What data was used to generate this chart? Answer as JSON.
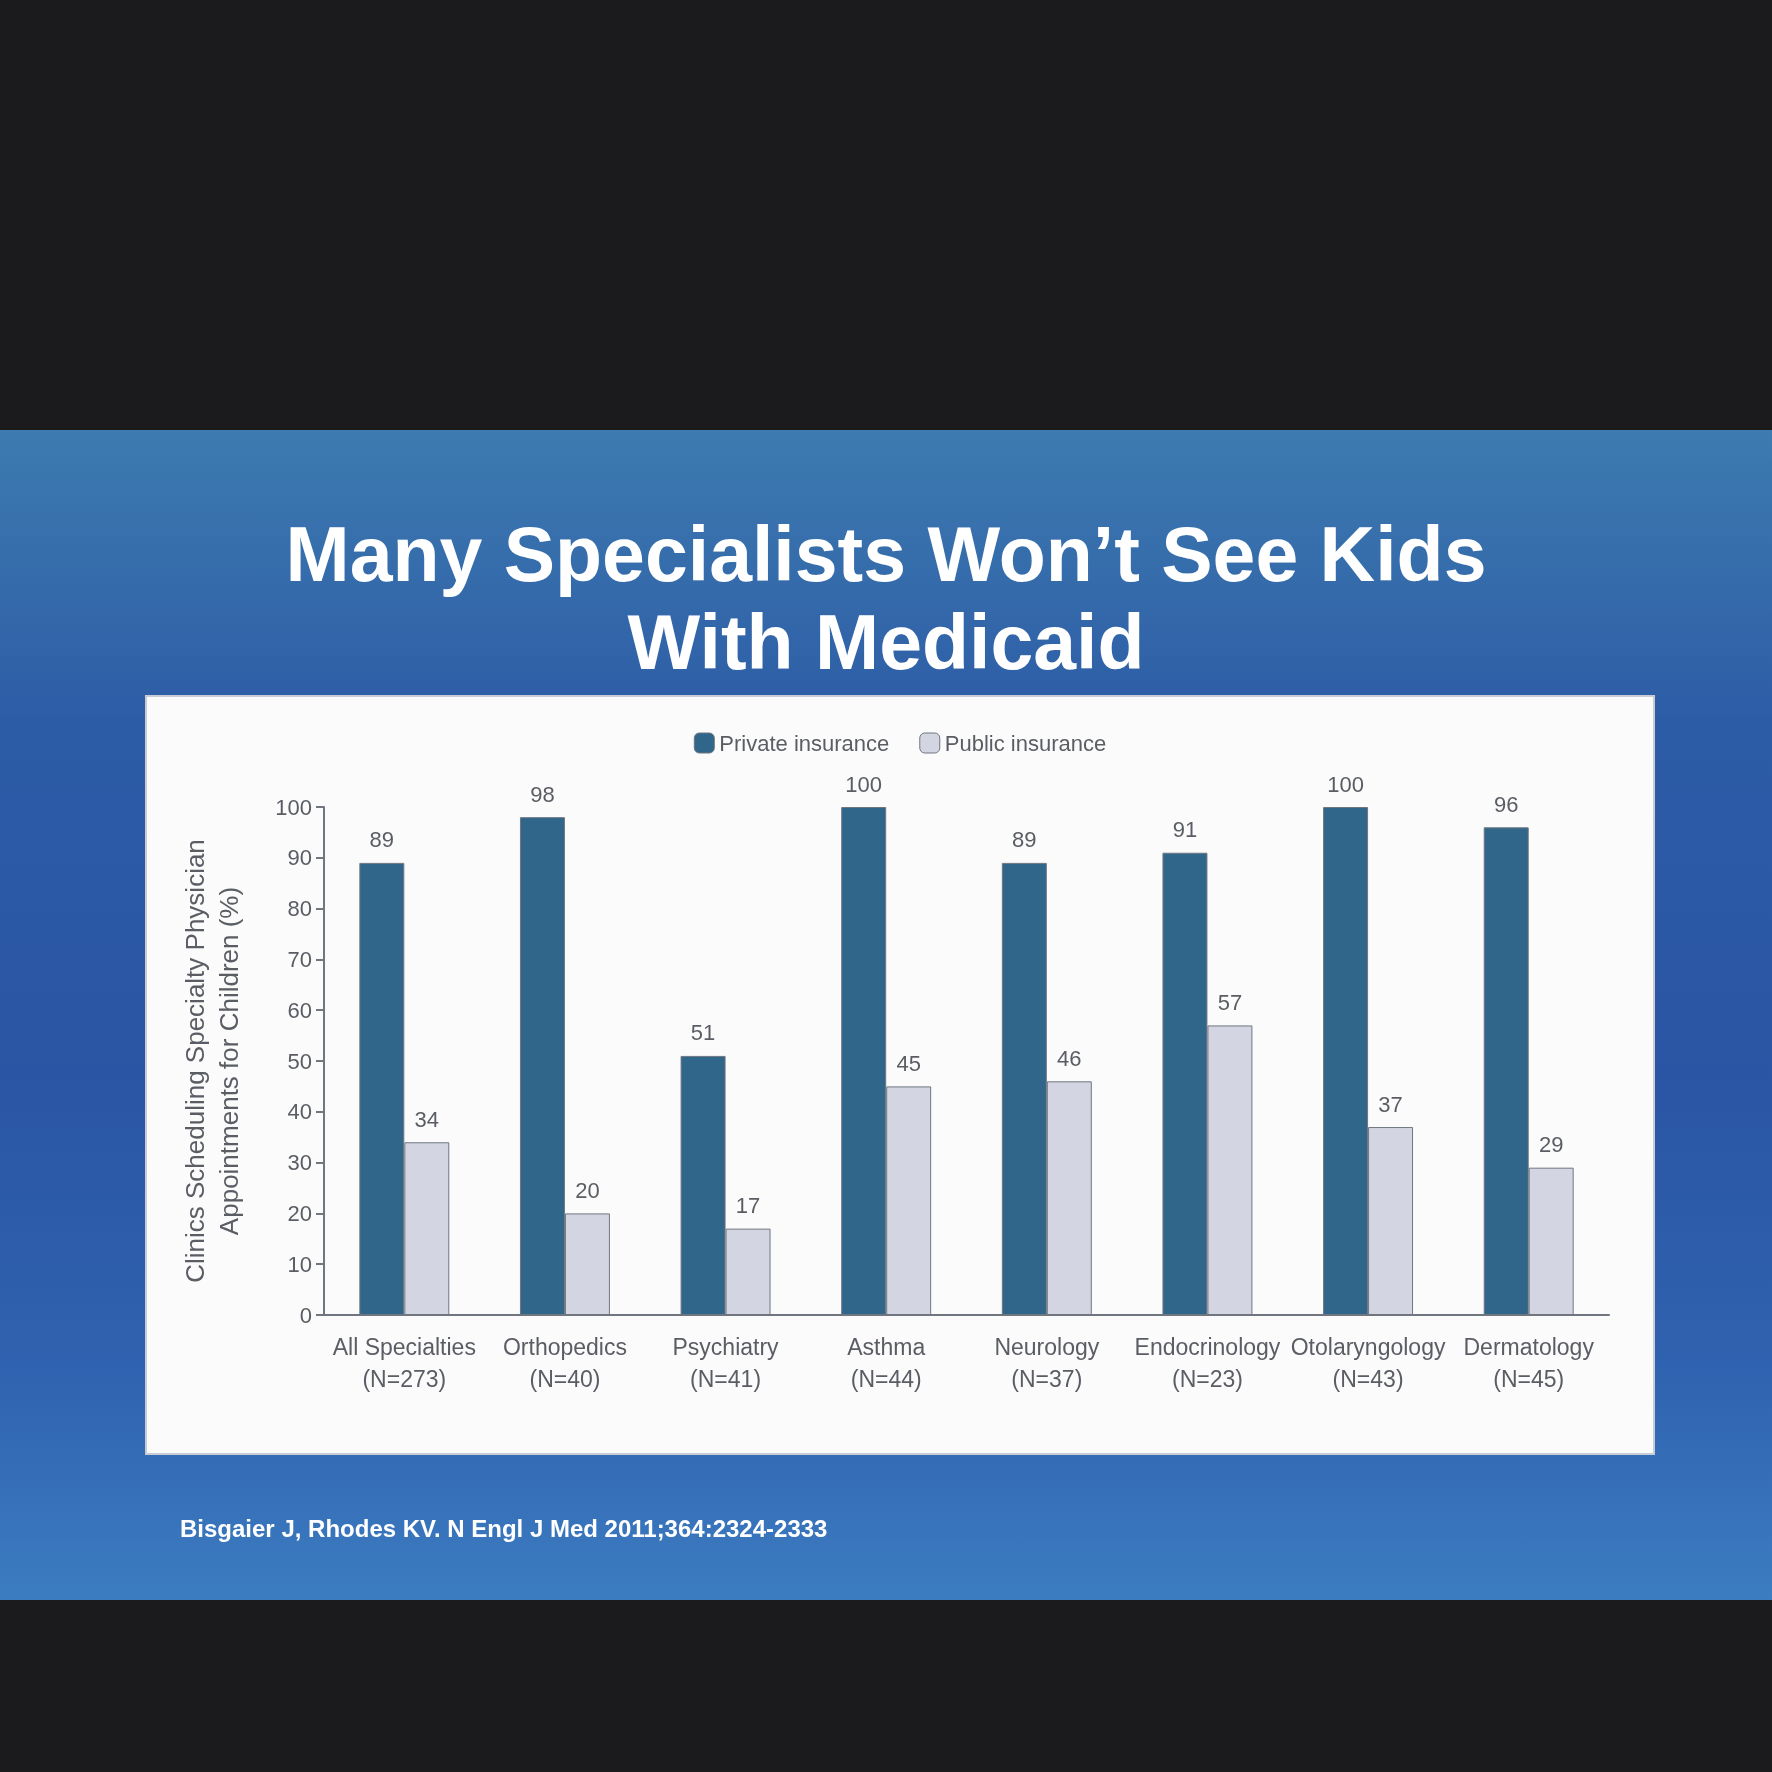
{
  "chart_data": {
    "type": "bar",
    "title": "Many Specialists Won’t See Kids With Medicaid",
    "ylabel": "Clinics Scheduling Specialty Physician Appointments for Children (%)",
    "categories": [
      "All Specialties\n(N=273)",
      "Orthopedics\n(N=40)",
      "Psychiatry\n(N=41)",
      "Asthma\n(N=44)",
      "Neurology\n(N=37)",
      "Endocrinology\n(N=23)",
      "Otolaryngology\n(N=43)",
      "Dermatology\n(N=45)"
    ],
    "series": [
      {
        "name": "Private insurance",
        "color": "#2f6689",
        "values": [
          89,
          98,
          51,
          100,
          89,
          91,
          100,
          96
        ]
      },
      {
        "name": "Public insurance",
        "color": "#d3d6e2",
        "values": [
          34,
          20,
          17,
          45,
          46,
          57,
          37,
          29
        ]
      }
    ],
    "ylim": [
      0,
      100
    ],
    "yticks": [
      0,
      10,
      20,
      30,
      40,
      50,
      60,
      70,
      80,
      90,
      100
    ],
    "data_labels": true,
    "legend": "top",
    "grid": false,
    "annotations": [
      "Bisgaier J, Rhodes KV. N Engl J Med 2011;364:2324-2333"
    ]
  }
}
